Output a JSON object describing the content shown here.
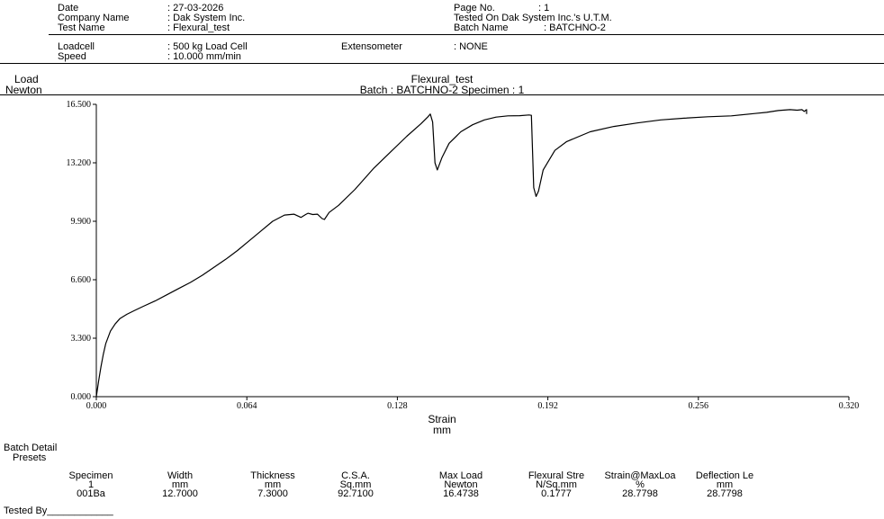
{
  "header": {
    "date_label": "Date",
    "date_value": ": 27-03-2026",
    "company_label": "Company Name",
    "company_value": ": Dak System Inc.",
    "test_label": "Test Name",
    "test_value": ": Flexural_test",
    "page_label": "Page No.",
    "page_value": ":        1",
    "tested_on": "Tested On Dak System Inc.'s U.T.M.",
    "batch_label": "Batch Name",
    "batch_value": ": BATCHNO-2",
    "loadcell_label": "Loadcell",
    "loadcell_value": ": 500 kg Load Cell",
    "speed_label": "Speed",
    "speed_value": ":     10.000 mm/min",
    "extensometer_label": "Extensometer",
    "extensometer_value": ":           NONE"
  },
  "chart_data": {
    "type": "line",
    "title": "Flexural_test",
    "subtitle": "Batch : BATCHNO-2 Specimen : 1",
    "ylabel_line1": "Load",
    "ylabel_line2": "Newton",
    "xlabel_line1": "Strain",
    "xlabel_line2": "mm",
    "xlim": [
      0,
      0.32
    ],
    "ylim": [
      0,
      16.5
    ],
    "x_ticks": [
      "0.000",
      "0.064",
      "0.128",
      "0.192",
      "0.256",
      "0.320"
    ],
    "y_ticks": [
      "0.000",
      "3.300",
      "6.600",
      "9.900",
      "13.200",
      "16.500"
    ],
    "grid": false,
    "series": [
      {
        "x": [
          0.0,
          0.001,
          0.002,
          0.003,
          0.004,
          0.006,
          0.008,
          0.01,
          0.013,
          0.016,
          0.02,
          0.025,
          0.03,
          0.035,
          0.04,
          0.045,
          0.05,
          0.055,
          0.06,
          0.065,
          0.07,
          0.075,
          0.08,
          0.084,
          0.087,
          0.089,
          0.09,
          0.092,
          0.094,
          0.096,
          0.097,
          0.099,
          0.103,
          0.11,
          0.118,
          0.125,
          0.132,
          0.138,
          0.141,
          0.142,
          0.143,
          0.144,
          0.145,
          0.147,
          0.15,
          0.155,
          0.16,
          0.165,
          0.17,
          0.175,
          0.18,
          0.184,
          0.185,
          0.186,
          0.187,
          0.188,
          0.19,
          0.195,
          0.2,
          0.21,
          0.22,
          0.23,
          0.24,
          0.25,
          0.26,
          0.27,
          0.28,
          0.285,
          0.29,
          0.295,
          0.298,
          0.3,
          0.301,
          0.302,
          0.302
        ],
        "y": [
          0.0,
          0.9,
          1.7,
          2.4,
          3.0,
          3.7,
          4.1,
          4.4,
          4.65,
          4.85,
          5.1,
          5.4,
          5.75,
          6.1,
          6.45,
          6.85,
          7.3,
          7.75,
          8.25,
          8.8,
          9.35,
          9.9,
          10.25,
          10.3,
          10.12,
          10.28,
          10.35,
          10.28,
          10.3,
          10.05,
          10.0,
          10.4,
          10.8,
          11.7,
          12.9,
          13.8,
          14.7,
          15.4,
          15.8,
          15.95,
          15.5,
          13.2,
          12.8,
          13.5,
          14.3,
          14.95,
          15.35,
          15.62,
          15.78,
          15.85,
          15.86,
          15.9,
          15.88,
          11.8,
          11.3,
          11.6,
          12.8,
          13.9,
          14.4,
          14.95,
          15.25,
          15.45,
          15.62,
          15.72,
          15.8,
          15.85,
          15.98,
          16.05,
          16.15,
          16.2,
          16.17,
          16.2,
          16.1,
          16.2,
          15.95
        ]
      }
    ]
  },
  "batch": {
    "title": "Batch Detail",
    "presets": "Presets",
    "columns": [
      {
        "h1": "Specimen",
        "h2": "1",
        "value": "001Ba"
      },
      {
        "h1": "Width",
        "h2": "mm",
        "value": "12.7000"
      },
      {
        "h1": "Thickness",
        "h2": "mm",
        "value": "7.3000"
      },
      {
        "h1": "C.S.A.",
        "h2": "Sq.mm",
        "value": "92.7100"
      },
      {
        "h1": "Max Load",
        "h2": "Newton",
        "value": "16.4738"
      },
      {
        "h1": "Flexural Stre",
        "h2": "N/Sq.mm",
        "value": "0.1777"
      },
      {
        "h1": "Strain@MaxLoa",
        "h2": "%",
        "value": "28.7798"
      },
      {
        "h1": "Deflection Le",
        "h2": "mm",
        "value": "28.7798"
      }
    ],
    "tested_by": "Tested By____________"
  }
}
